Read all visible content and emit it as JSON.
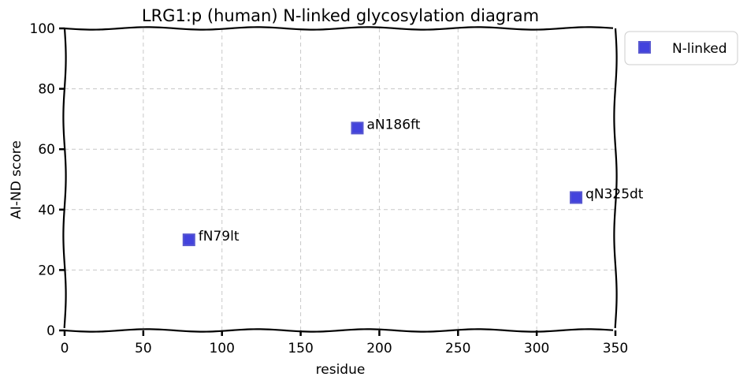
{
  "chart_data": {
    "type": "scatter",
    "title": "LRG1:p (human) N-linked glycosylation diagram",
    "xlabel": "residue",
    "ylabel": "AI-ND score",
    "xlim": [
      0,
      350
    ],
    "ylim": [
      0,
      100
    ],
    "xticks": [
      "0",
      "50",
      "100",
      "150",
      "200",
      "250",
      "300",
      "350"
    ],
    "yticks": [
      "0",
      "20",
      "40",
      "60",
      "80",
      "100"
    ],
    "grid": true,
    "legend_position": "outside-top-right",
    "series": [
      {
        "name": "N-linked",
        "color": "#2323d8",
        "marker": "square",
        "points": [
          {
            "x": 79,
            "y": 30,
            "label": "fN79lt"
          },
          {
            "x": 186,
            "y": 67,
            "label": "aN186ft"
          },
          {
            "x": 325,
            "y": 44,
            "label": "qN325dt"
          }
        ]
      }
    ]
  }
}
